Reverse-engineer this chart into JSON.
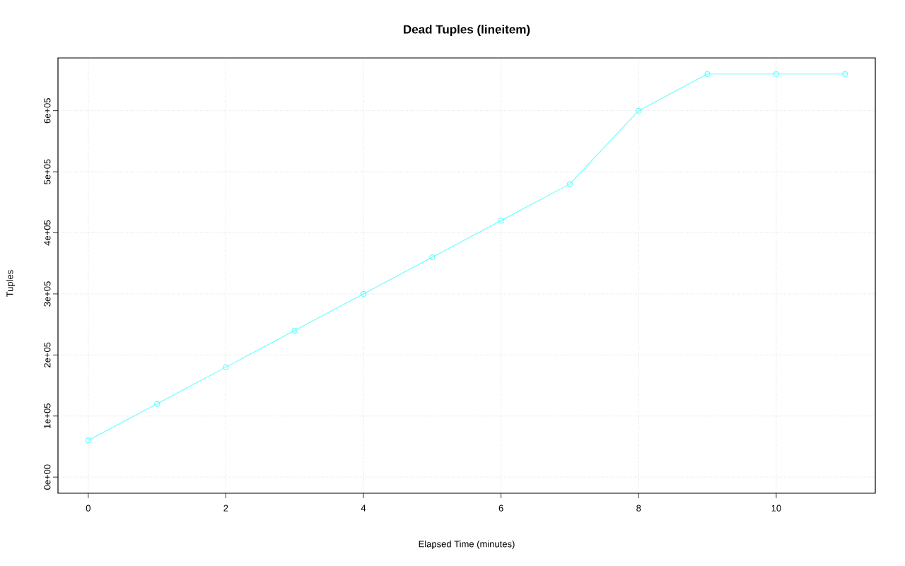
{
  "chart_data": {
    "type": "line",
    "title": "Dead Tuples (lineitem)",
    "xlabel": "Elapsed Time (minutes)",
    "ylabel": "Tuples",
    "x": [
      0,
      1,
      2,
      3,
      4,
      5,
      6,
      7,
      8,
      9,
      10,
      11
    ],
    "series": [
      {
        "color": "#66ffff",
        "values": [
          60000,
          120000,
          180000,
          240000,
          300000,
          360000,
          420000,
          480000,
          600000,
          660000,
          660000,
          660000
        ]
      }
    ],
    "xlim": [
      -0.44,
      11.44
    ],
    "ylim": [
      -26400,
      686400
    ],
    "xticks": [
      0,
      2,
      4,
      6,
      8,
      10
    ],
    "yticks": [
      {
        "value": 0,
        "label": "0e+00"
      },
      {
        "value": 100000,
        "label": "1e+05"
      },
      {
        "value": 200000,
        "label": "2e+05"
      },
      {
        "value": 300000,
        "label": "3e+05"
      },
      {
        "value": 400000,
        "label": "4e+05"
      },
      {
        "value": 500000,
        "label": "5e+05"
      },
      {
        "value": 600000,
        "label": "6e+05"
      }
    ],
    "grid": true,
    "marker": "circle",
    "line_style": "solid"
  }
}
